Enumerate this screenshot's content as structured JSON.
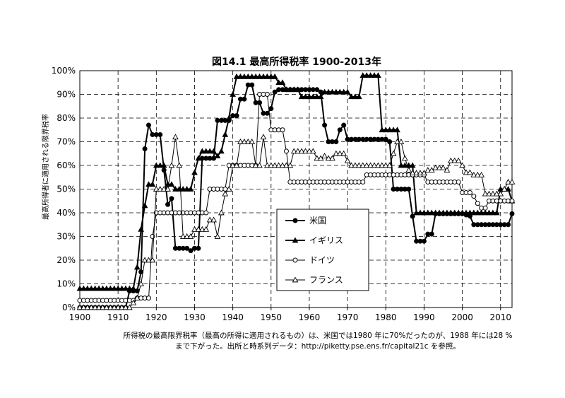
{
  "chart_data": {
    "type": "line",
    "title": "図14.1 最高所得税率 1900-2013年",
    "ylabel": "最高所得者に適用される限界税率",
    "xlabel": "",
    "xlim": [
      1900,
      2013
    ],
    "ylim": [
      0,
      100
    ],
    "x_ticks": [
      1900,
      1910,
      1920,
      1930,
      1940,
      1950,
      1960,
      1970,
      1980,
      1990,
      2000,
      2010
    ],
    "y_ticks": [
      "0%",
      "10%",
      "20%",
      "30%",
      "40%",
      "50%",
      "60%",
      "70%",
      "80%",
      "90%",
      "100%"
    ],
    "grid": true,
    "legend_position": "center-right",
    "series": [
      {
        "name": "米国",
        "marker": "filled-circle",
        "points": [
          [
            1900,
            0
          ],
          [
            1912,
            0
          ],
          [
            1913,
            7
          ],
          [
            1915,
            7
          ],
          [
            1916,
            15
          ],
          [
            1917,
            67
          ],
          [
            1918,
            77
          ],
          [
            1919,
            73
          ],
          [
            1921,
            73
          ],
          [
            1922,
            58
          ],
          [
            1923,
            43.5
          ],
          [
            1924,
            46
          ],
          [
            1925,
            25
          ],
          [
            1928,
            25
          ],
          [
            1929,
            24
          ],
          [
            1930,
            25
          ],
          [
            1931,
            25
          ],
          [
            1932,
            63
          ],
          [
            1935,
            63
          ],
          [
            1936,
            79
          ],
          [
            1940,
            81
          ],
          [
            1941,
            81
          ],
          [
            1942,
            88
          ],
          [
            1944,
            94
          ],
          [
            1945,
            94
          ],
          [
            1946,
            86.5
          ],
          [
            1948,
            82
          ],
          [
            1950,
            84
          ],
          [
            1951,
            91
          ],
          [
            1952,
            92
          ],
          [
            1963,
            91
          ],
          [
            1964,
            77
          ],
          [
            1965,
            70
          ],
          [
            1967,
            70
          ],
          [
            1968,
            75
          ],
          [
            1969,
            77
          ],
          [
            1970,
            71
          ],
          [
            1981,
            70
          ],
          [
            1982,
            50
          ],
          [
            1986,
            50
          ],
          [
            1987,
            38.5
          ],
          [
            1988,
            28
          ],
          [
            1990,
            28
          ],
          [
            1991,
            31
          ],
          [
            1993,
            39.6
          ],
          [
            2000,
            39.6
          ],
          [
            2001,
            39.1
          ],
          [
            2002,
            38.6
          ],
          [
            2003,
            35
          ],
          [
            2012,
            35
          ],
          [
            2013,
            39.6
          ]
        ]
      },
      {
        "name": "イギリス",
        "marker": "filled-triangle",
        "points": [
          [
            1900,
            8
          ],
          [
            1909,
            8
          ],
          [
            1910,
            8
          ],
          [
            1913,
            8
          ],
          [
            1914,
            8
          ],
          [
            1915,
            17
          ],
          [
            1916,
            33
          ],
          [
            1917,
            43
          ],
          [
            1918,
            52
          ],
          [
            1919,
            52
          ],
          [
            1920,
            60
          ],
          [
            1922,
            60
          ],
          [
            1923,
            52
          ],
          [
            1925,
            50
          ],
          [
            1929,
            50
          ],
          [
            1930,
            57
          ],
          [
            1931,
            63
          ],
          [
            1932,
            66
          ],
          [
            1934,
            66
          ],
          [
            1936,
            64
          ],
          [
            1937,
            66
          ],
          [
            1938,
            73
          ],
          [
            1939,
            80
          ],
          [
            1940,
            90
          ],
          [
            1941,
            97.5
          ],
          [
            1951,
            97.5
          ],
          [
            1952,
            95
          ],
          [
            1953,
            95
          ],
          [
            1954,
            92
          ],
          [
            1957,
            92
          ],
          [
            1958,
            89
          ],
          [
            1963,
            89
          ],
          [
            1964,
            91
          ],
          [
            1970,
            91
          ],
          [
            1971,
            89
          ],
          [
            1973,
            89
          ],
          [
            1974,
            98
          ],
          [
            1978,
            98
          ],
          [
            1979,
            75
          ],
          [
            1983,
            75
          ],
          [
            1984,
            60
          ],
          [
            1987,
            60
          ],
          [
            1988,
            40
          ],
          [
            2009,
            40
          ],
          [
            2010,
            50
          ],
          [
            2012,
            50
          ],
          [
            2013,
            45
          ]
        ]
      },
      {
        "name": "ドイツ",
        "marker": "open-circle",
        "points": [
          [
            1900,
            3
          ],
          [
            1914,
            3
          ],
          [
            1915,
            4
          ],
          [
            1918,
            4
          ],
          [
            1919,
            30
          ],
          [
            1920,
            40
          ],
          [
            1933,
            40
          ],
          [
            1934,
            50
          ],
          [
            1938,
            50
          ],
          [
            1939,
            60
          ],
          [
            1946,
            60
          ],
          [
            1947,
            90
          ],
          [
            1949,
            90
          ],
          [
            1950,
            75
          ],
          [
            1953,
            75
          ],
          [
            1954,
            66
          ],
          [
            1955,
            53
          ],
          [
            1974,
            53
          ],
          [
            1975,
            56
          ],
          [
            1990,
            56
          ],
          [
            1991,
            53
          ],
          [
            1999,
            53
          ],
          [
            2000,
            48.5
          ],
          [
            2002,
            48.5
          ],
          [
            2003,
            47
          ],
          [
            2004,
            44
          ],
          [
            2005,
            42
          ],
          [
            2007,
            45
          ],
          [
            2013,
            45
          ]
        ]
      },
      {
        "name": "フランス",
        "marker": "open-triangle",
        "points": [
          [
            1900,
            0
          ],
          [
            1913,
            0
          ],
          [
            1914,
            2
          ],
          [
            1915,
            4
          ],
          [
            1916,
            10
          ],
          [
            1917,
            20
          ],
          [
            1919,
            20
          ],
          [
            1920,
            50
          ],
          [
            1923,
            50
          ],
          [
            1924,
            60
          ],
          [
            1925,
            72
          ],
          [
            1926,
            60
          ],
          [
            1927,
            30
          ],
          [
            1929,
            30
          ],
          [
            1930,
            33
          ],
          [
            1933,
            33
          ],
          [
            1934,
            37
          ],
          [
            1936,
            30
          ],
          [
            1937,
            40
          ],
          [
            1938,
            48
          ],
          [
            1939,
            50
          ],
          [
            1940,
            60
          ],
          [
            1941,
            60
          ],
          [
            1942,
            70
          ],
          [
            1945,
            70
          ],
          [
            1946,
            60
          ],
          [
            1947,
            60
          ],
          [
            1948,
            72
          ],
          [
            1949,
            60
          ],
          [
            1955,
            60
          ],
          [
            1956,
            66
          ],
          [
            1961,
            66
          ],
          [
            1962,
            63
          ],
          [
            1963,
            63
          ],
          [
            1964,
            64
          ],
          [
            1965,
            63
          ],
          [
            1967,
            65
          ],
          [
            1969,
            65
          ],
          [
            1970,
            62
          ],
          [
            1971,
            60
          ],
          [
            1981,
            60
          ],
          [
            1982,
            65
          ],
          [
            1983,
            70
          ],
          [
            1985,
            63
          ],
          [
            1986,
            58
          ],
          [
            1987,
            56.8
          ],
          [
            1990,
            56.8
          ],
          [
            1991,
            58
          ],
          [
            1993,
            59
          ],
          [
            1995,
            59
          ],
          [
            1996,
            58
          ],
          [
            1997,
            62
          ],
          [
            1999,
            62
          ],
          [
            2000,
            60
          ],
          [
            2001,
            57
          ],
          [
            2002,
            57
          ],
          [
            2003,
            56
          ],
          [
            2005,
            56
          ],
          [
            2006,
            48
          ],
          [
            2010,
            48
          ],
          [
            2011,
            50
          ],
          [
            2012,
            53
          ],
          [
            2013,
            53
          ]
        ]
      }
    ],
    "caption_lines": [
      "所得税の最高限界税率（最高の所得に適用されるもの）は、米国では1980 年に70%だったのが、1988 年には28 %",
      "まで下がった。出所と時系列データ：http://piketty.pse.ens.fr/capital21c を参照。"
    ]
  },
  "colors": {
    "line": "#000000",
    "grid": "#000000",
    "background": "#ffffff"
  }
}
